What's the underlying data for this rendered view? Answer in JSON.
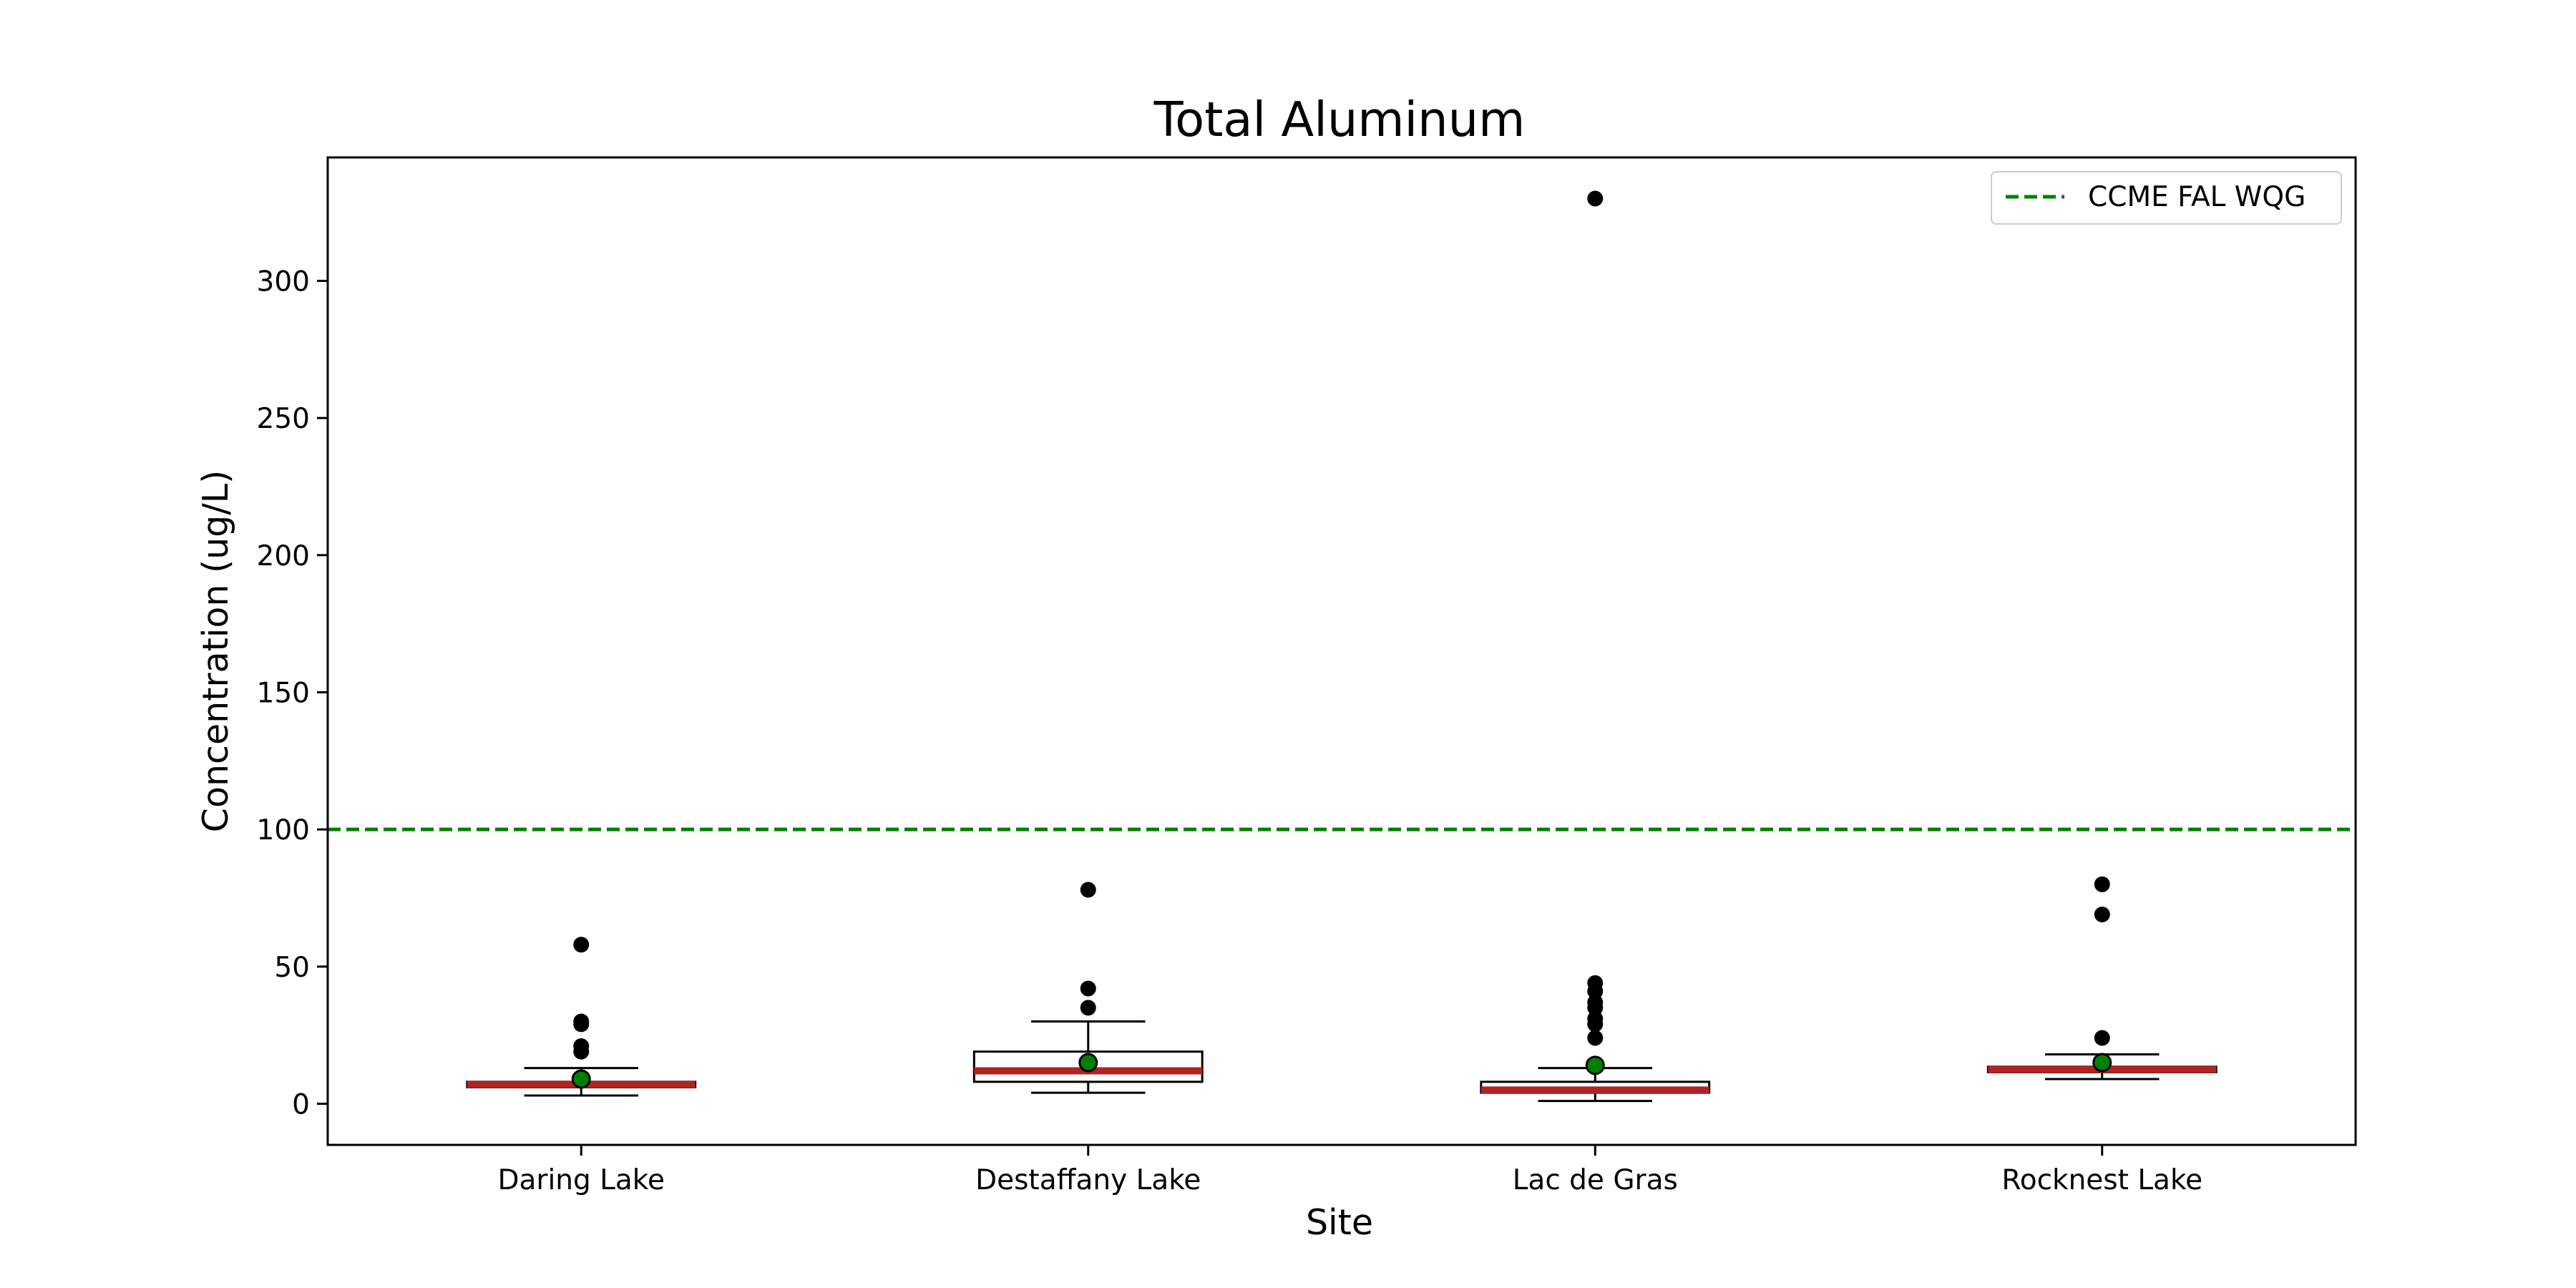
{
  "chart_data": {
    "type": "box",
    "title": "Total Aluminum",
    "xlabel": "Site",
    "ylabel": "Concentration (ug/L)",
    "ylim": [
      -15,
      345
    ],
    "yticks": [
      0,
      50,
      100,
      150,
      200,
      250,
      300
    ],
    "categories": [
      "Daring Lake",
      "Destaffany Lake",
      "Lac de Gras",
      "Rocknest Lake"
    ],
    "boxes": [
      {
        "category": "Daring Lake",
        "whisker_low": 3,
        "q1": 6,
        "median": 7,
        "q3": 8,
        "whisker_high": 13,
        "mean": 9,
        "outliers": [
          58,
          30,
          29,
          21,
          19
        ]
      },
      {
        "category": "Destaffany Lake",
        "whisker_low": 4,
        "q1": 8,
        "median": 12,
        "q3": 19,
        "whisker_high": 30,
        "mean": 15,
        "outliers": [
          78,
          42,
          35
        ]
      },
      {
        "category": "Lac de Gras",
        "whisker_low": 1,
        "q1": 4,
        "median": 5,
        "q3": 8,
        "whisker_high": 13,
        "mean": 14,
        "outliers": [
          330,
          44,
          41,
          37,
          35,
          31,
          29,
          24
        ]
      },
      {
        "category": "Rocknest Lake",
        "whisker_low": 9,
        "q1": 11.5,
        "median": 12.5,
        "q3": 13.5,
        "whisker_high": 18,
        "mean": 15,
        "outliers": [
          80,
          69,
          24
        ]
      }
    ],
    "reference_line": {
      "label": "CCME FAL WQG",
      "value": 100,
      "color": "#008000",
      "style": "dashed"
    },
    "legend": {
      "position": "upper right",
      "entries": [
        "CCME FAL WQG"
      ]
    },
    "colors": {
      "median": "#b22222",
      "mean": "#008000",
      "outlier": "#000000",
      "box": "#000000"
    },
    "grid": false
  }
}
